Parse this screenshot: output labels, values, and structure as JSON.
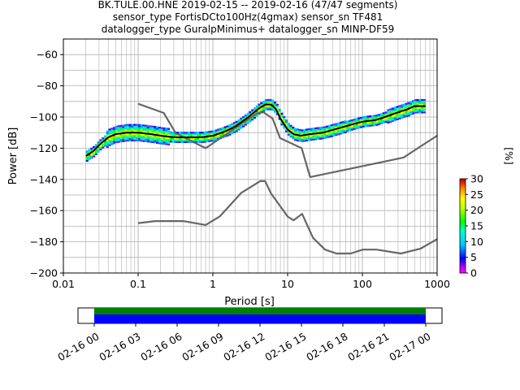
{
  "chart_data": {
    "type": "heatmap",
    "title_lines": [
      "BK.TULE.00.HNE   2019-02-15 -- 2019-02-16  (47/47 segments)",
      "sensor_type FortisDCto100Hz(4gmax) sensor_sn TF481",
      "datalogger_type GuralpMinimus+ datalogger_sn MINP-DF59"
    ],
    "xlabel": "Period [s]",
    "ylabel": "Power [dB]",
    "xscale": "log",
    "xlim": [
      0.01,
      1000
    ],
    "ylim": [
      -200,
      -50
    ],
    "x_ticks": [
      {
        "value": 0.01,
        "label": "0.01"
      },
      {
        "value": 0.1,
        "label": "0.1"
      },
      {
        "value": 1,
        "label": "1"
      },
      {
        "value": 10,
        "label": "10"
      },
      {
        "value": 100,
        "label": "100"
      },
      {
        "value": 1000,
        "label": "1000"
      }
    ],
    "y_ticks": [
      {
        "value": -60,
        "label": "−60"
      },
      {
        "value": -80,
        "label": "−80"
      },
      {
        "value": -100,
        "label": "−100"
      },
      {
        "value": -120,
        "label": "−120"
      },
      {
        "value": -140,
        "label": "−140"
      },
      {
        "value": -160,
        "label": "−160"
      },
      {
        "value": -180,
        "label": "−180"
      },
      {
        "value": -200,
        "label": "−200"
      }
    ],
    "grid": true,
    "mean_curve": {
      "x": [
        0.02,
        0.025,
        0.03,
        0.04,
        0.05,
        0.07,
        0.1,
        0.15,
        0.2,
        0.3,
        0.5,
        0.7,
        1,
        1.5,
        2,
        3,
        4,
        5,
        6,
        7,
        8,
        10,
        12,
        15,
        20,
        30,
        50,
        70,
        100,
        150,
        200,
        300,
        400,
        500,
        700
      ],
      "y": [
        -125,
        -122,
        -118,
        -113,
        -111,
        -110,
        -110,
        -111,
        -112,
        -113,
        -113,
        -113,
        -112,
        -109,
        -106,
        -100,
        -95,
        -92,
        -92,
        -95,
        -101,
        -108,
        -111,
        -112,
        -111,
        -110,
        -107,
        -105,
        -103,
        -102,
        -100,
        -97,
        -95,
        -93,
        -93
      ]
    },
    "new_high_noise_model": {
      "x": [
        0.1,
        0.22,
        0.32,
        0.8,
        3.8,
        4.6,
        6.3,
        7.9,
        15.4,
        20,
        354.8,
        1000
      ],
      "y": [
        -91.5,
        -97.4,
        -110.5,
        -120,
        -98,
        -96.5,
        -101,
        -113.5,
        -120,
        -138.5,
        -126,
        -112
      ]
    },
    "new_low_noise_model": {
      "x": [
        0.1,
        0.17,
        0.4,
        0.8,
        1.24,
        2.4,
        4.3,
        5,
        6,
        10,
        12,
        15.6,
        21.9,
        31.6,
        45,
        70,
        101,
        154,
        328,
        600,
        1000
      ],
      "y": [
        -168,
        -166.7,
        -166.7,
        -169.2,
        -163.7,
        -148.6,
        -141.1,
        -141.1,
        -149,
        -163.8,
        -166.2,
        -162.1,
        -177.5,
        -185,
        -187.5,
        -187.5,
        -185,
        -185,
        -187.5,
        -184.4,
        -178.3
      ]
    },
    "colorbar": {
      "label": "[%]",
      "range": [
        0,
        30
      ],
      "ticks": [
        "0",
        "5",
        "10",
        "15",
        "20",
        "25",
        "30"
      ]
    },
    "time_axis": {
      "tick_labels": [
        "02-16 00",
        "02-16 03",
        "02-16 06",
        "02-16 09",
        "02-16 12",
        "02-16 15",
        "02-16 18",
        "02-16 21",
        "02-17 00"
      ],
      "coverage_color_top": "#008000",
      "coverage_color_bottom": "#0000ff"
    }
  }
}
